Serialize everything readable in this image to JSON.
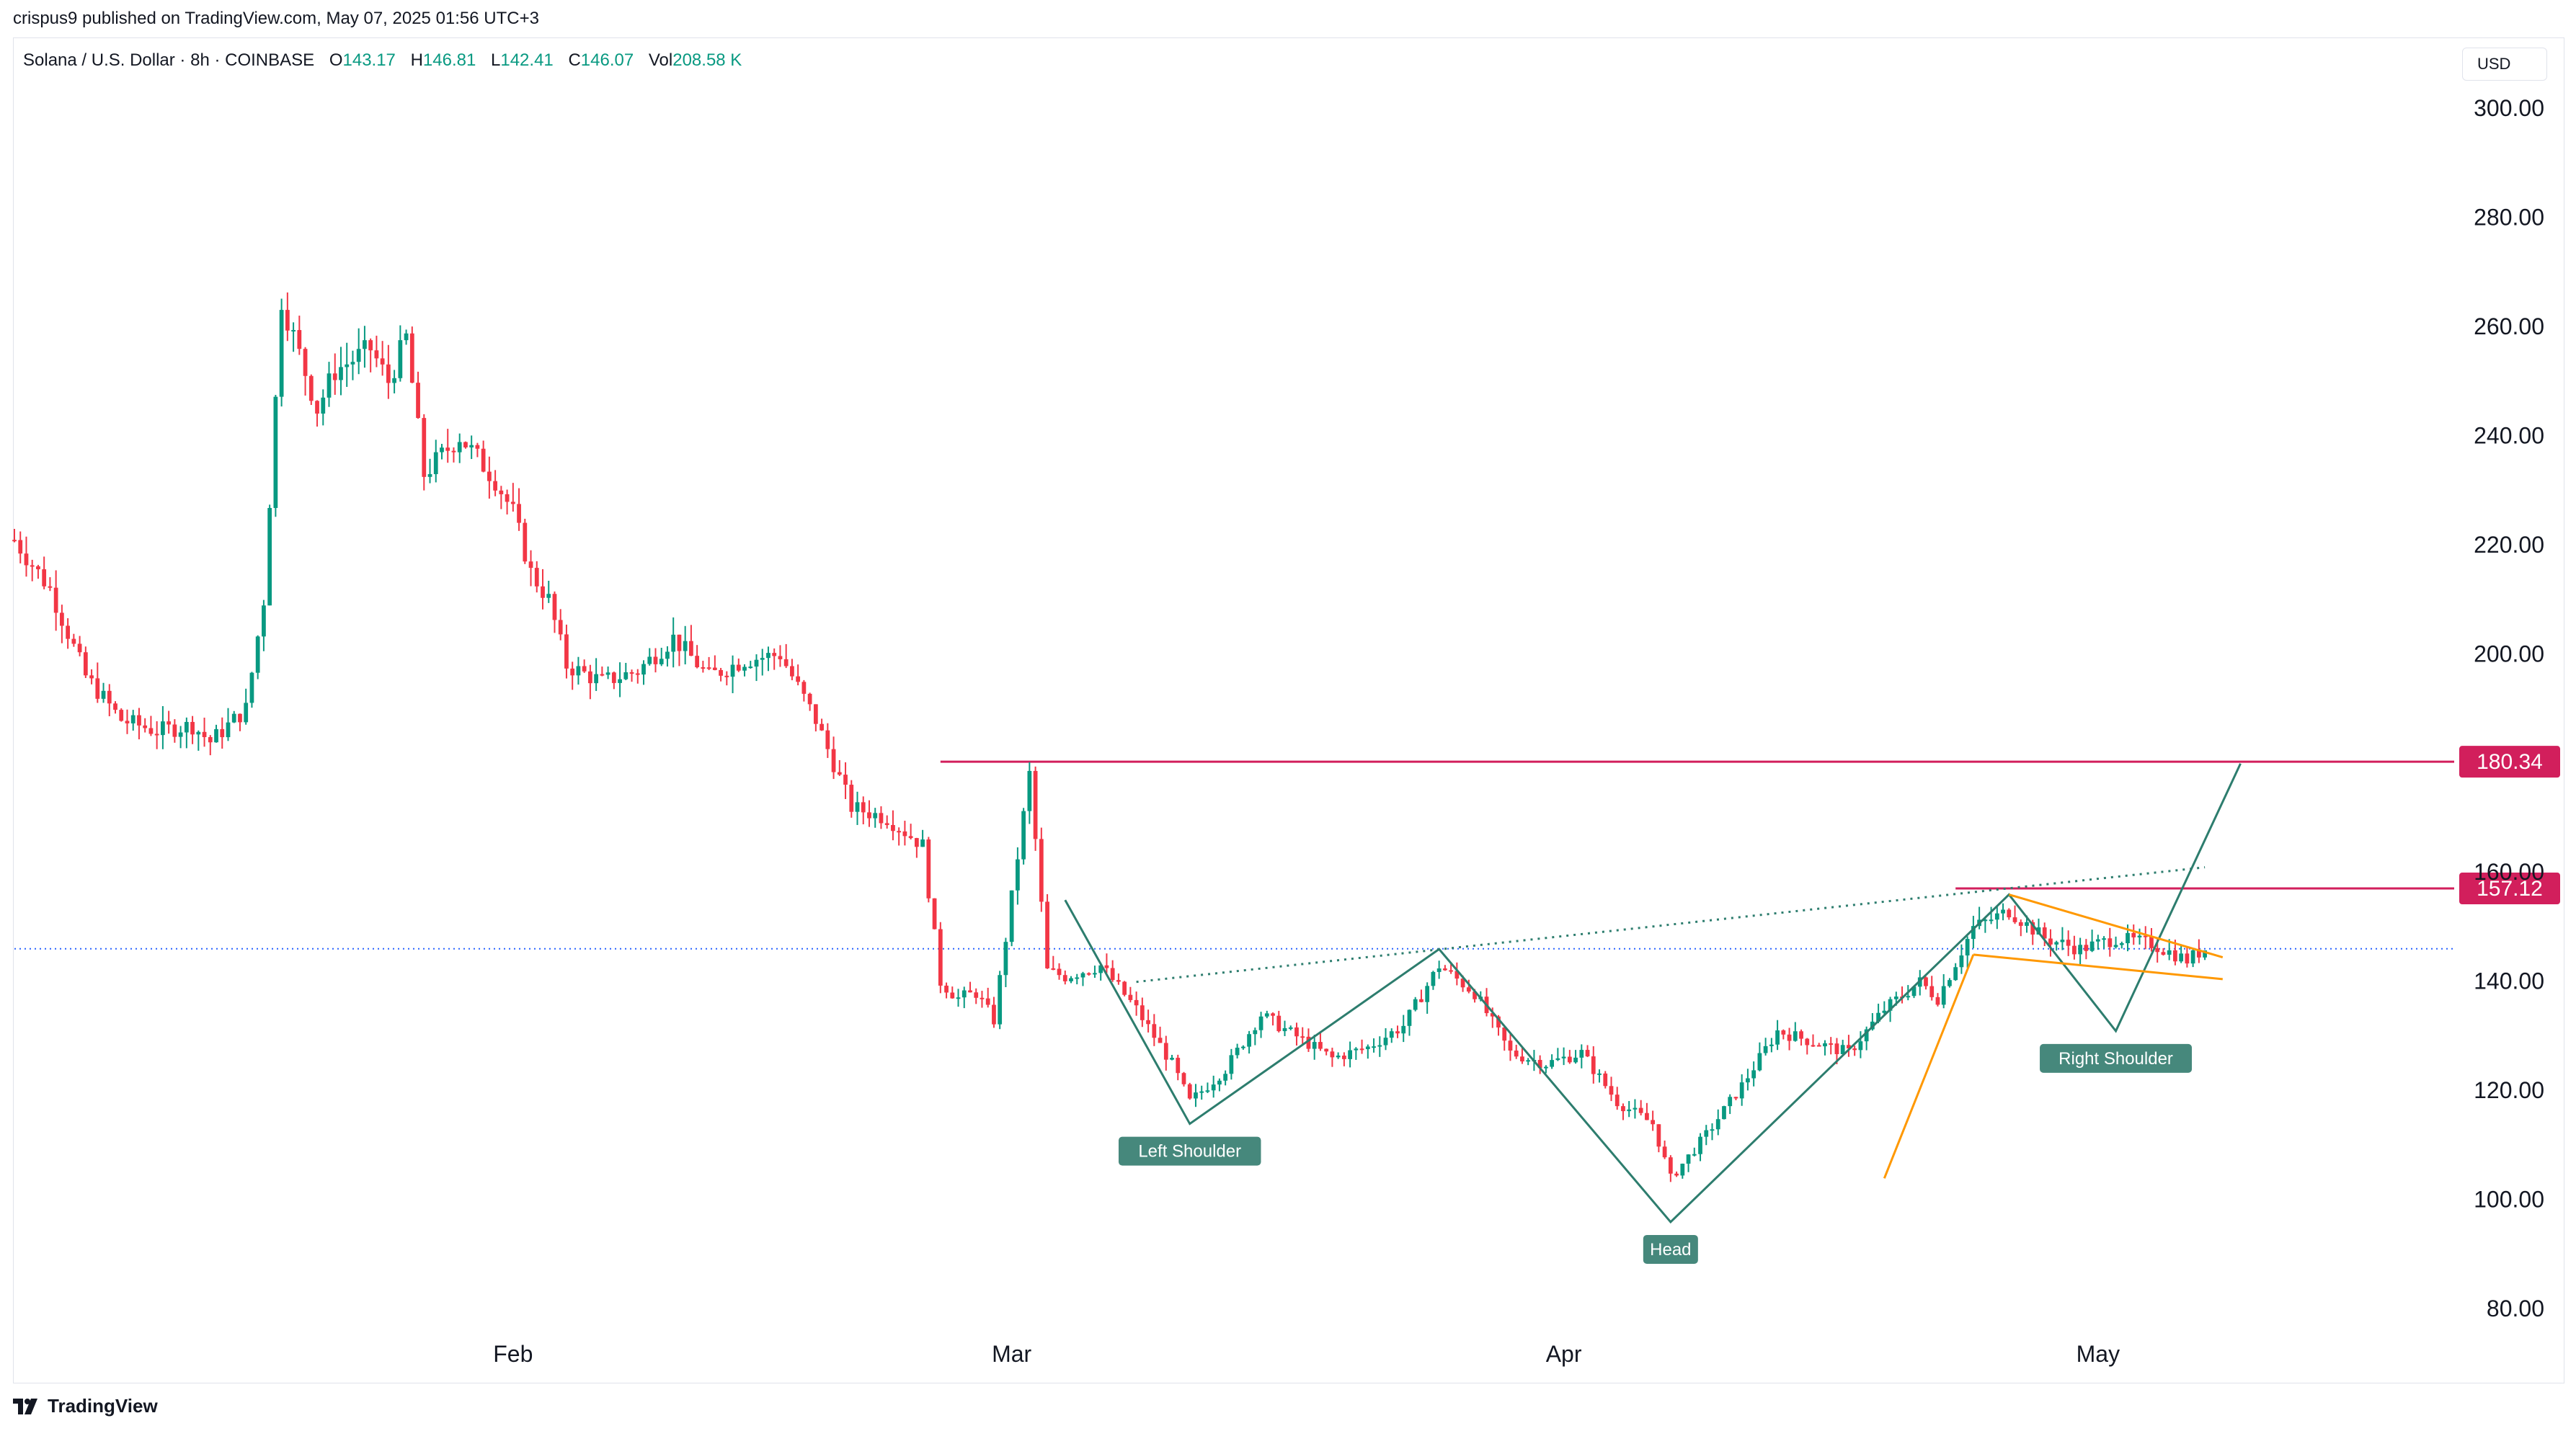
{
  "header": {
    "publisher_text": "crispus9 published on TradingView.com, May 07, 2025 01:56 UTC+3"
  },
  "legend": {
    "symbol": "Solana / U.S. Dollar · 8h · COINBASE",
    "open_label": "O",
    "open": "143.17",
    "high_label": "H",
    "high": "146.81",
    "low_label": "L",
    "low": "142.41",
    "close_label": "C",
    "close": "146.07",
    "vol_label": "Vol",
    "vol": "208.58 K"
  },
  "currency_button": "USD",
  "footer": {
    "brand": "TradingView",
    "logo_icon": "tradingview-logo-icon"
  },
  "colors": {
    "up": "#089981",
    "down": "#f23645",
    "level": "#d21f5c",
    "pattern": "#2d7d6e",
    "wedge": "#ff9800",
    "price_line": "#2962ff"
  },
  "chart_data": {
    "type": "candlestick",
    "title": "",
    "ylim": [
      75,
      312
    ],
    "y_ticks": [
      "300.00",
      "280.00",
      "260.00",
      "240.00",
      "220.00",
      "200.00",
      "160.00",
      "140.00",
      "120.00",
      "100.00",
      "80.00"
    ],
    "x_ticks": [
      {
        "label": "Feb",
        "date": "2025-02-01"
      },
      {
        "label": "Mar",
        "date": "2025-03-01"
      },
      {
        "label": "Apr",
        "date": "2025-04-01"
      },
      {
        "label": "May",
        "date": "2025-05-01"
      }
    ],
    "x_range": [
      "2025-01-04",
      "2025-05-21"
    ],
    "current_price": 146.07,
    "levels": [
      {
        "label": "180.34",
        "value": 180.34,
        "from": "2025-02-25"
      },
      {
        "label": "157.12",
        "value": 157.12,
        "from": "2025-04-23"
      }
    ],
    "annotations": [
      {
        "text": "Left Shoulder",
        "date": "2025-03-11",
        "value": 114
      },
      {
        "text": "Head",
        "date": "2025-04-07",
        "value": 96
      },
      {
        "text": "Right Shoulder",
        "date": "2025-05-02",
        "value": 131
      }
    ],
    "pattern_path": [
      [
        "2025-03-04",
        155
      ],
      [
        "2025-03-11",
        114
      ],
      [
        "2025-03-25",
        146
      ],
      [
        "2025-04-07",
        96
      ],
      [
        "2025-04-26",
        156
      ],
      [
        "2025-05-02",
        131
      ],
      [
        "2025-05-09",
        180
      ]
    ],
    "neckline": [
      [
        "2025-03-08",
        140
      ],
      [
        "2025-05-07",
        161
      ]
    ],
    "wedge_lines": [
      [
        [
          "2025-04-19",
          104
        ],
        [
          "2025-04-24",
          145
        ]
      ],
      [
        [
          "2025-04-24",
          145
        ],
        [
          "2025-05-08",
          140.5
        ]
      ],
      [
        [
          "2025-04-26",
          156
        ],
        [
          "2025-05-08",
          144.5
        ]
      ]
    ],
    "series": [
      {
        "date": "2025-01-04",
        "close": 221
      },
      {
        "date": "2025-01-06",
        "close": 212
      },
      {
        "date": "2025-01-08",
        "close": 196
      },
      {
        "date": "2025-01-10",
        "close": 188
      },
      {
        "date": "2025-01-12",
        "close": 186
      },
      {
        "date": "2025-01-14",
        "close": 187
      },
      {
        "date": "2025-01-15",
        "close": 184
      },
      {
        "date": "2025-01-17",
        "close": 190
      },
      {
        "date": "2025-01-18",
        "close": 210
      },
      {
        "date": "2025-01-19",
        "close": 265
      },
      {
        "date": "2025-01-20",
        "close": 255
      },
      {
        "date": "2025-01-21",
        "close": 245
      },
      {
        "date": "2025-01-22",
        "close": 252
      },
      {
        "date": "2025-01-24",
        "close": 256
      },
      {
        "date": "2025-01-25",
        "close": 250
      },
      {
        "date": "2025-01-26",
        "close": 258
      },
      {
        "date": "2025-01-27",
        "close": 233
      },
      {
        "date": "2025-01-29",
        "close": 240
      },
      {
        "date": "2025-01-31",
        "close": 232
      },
      {
        "date": "2025-02-01",
        "close": 226
      },
      {
        "date": "2025-02-02",
        "close": 215
      },
      {
        "date": "2025-02-03",
        "close": 210
      },
      {
        "date": "2025-02-04",
        "close": 198
      },
      {
        "date": "2025-02-06",
        "close": 195
      },
      {
        "date": "2025-02-08",
        "close": 197
      },
      {
        "date": "2025-02-10",
        "close": 203
      },
      {
        "date": "2025-02-12",
        "close": 196
      },
      {
        "date": "2025-02-14",
        "close": 199
      },
      {
        "date": "2025-02-16",
        "close": 200
      },
      {
        "date": "2025-02-18",
        "close": 188
      },
      {
        "date": "2025-02-20",
        "close": 172
      },
      {
        "date": "2025-02-22",
        "close": 170
      },
      {
        "date": "2025-02-24",
        "close": 165
      },
      {
        "date": "2025-02-25",
        "close": 140
      },
      {
        "date": "2025-02-26",
        "close": 137
      },
      {
        "date": "2025-02-27",
        "close": 138
      },
      {
        "date": "2025-02-28",
        "close": 133
      },
      {
        "date": "2025-03-02",
        "close": 178
      },
      {
        "date": "2025-03-03",
        "close": 142
      },
      {
        "date": "2025-03-04",
        "close": 141
      },
      {
        "date": "2025-03-06",
        "close": 143
      },
      {
        "date": "2025-03-08",
        "close": 135
      },
      {
        "date": "2025-03-10",
        "close": 125
      },
      {
        "date": "2025-03-11",
        "close": 118
      },
      {
        "date": "2025-03-13",
        "close": 124
      },
      {
        "date": "2025-03-15",
        "close": 134
      },
      {
        "date": "2025-03-17",
        "close": 130
      },
      {
        "date": "2025-03-19",
        "close": 126
      },
      {
        "date": "2025-03-21",
        "close": 128
      },
      {
        "date": "2025-03-23",
        "close": 132
      },
      {
        "date": "2025-03-25",
        "close": 143
      },
      {
        "date": "2025-03-27",
        "close": 138
      },
      {
        "date": "2025-03-29",
        "close": 127
      },
      {
        "date": "2025-03-31",
        "close": 125
      },
      {
        "date": "2025-04-02",
        "close": 127
      },
      {
        "date": "2025-04-04",
        "close": 118
      },
      {
        "date": "2025-04-06",
        "close": 114
      },
      {
        "date": "2025-04-07",
        "close": 104
      },
      {
        "date": "2025-04-09",
        "close": 112
      },
      {
        "date": "2025-04-11",
        "close": 121
      },
      {
        "date": "2025-04-13",
        "close": 131
      },
      {
        "date": "2025-04-15",
        "close": 129
      },
      {
        "date": "2025-04-17",
        "close": 127
      },
      {
        "date": "2025-04-19",
        "close": 135
      },
      {
        "date": "2025-04-21",
        "close": 140
      },
      {
        "date": "2025-04-22",
        "close": 137
      },
      {
        "date": "2025-04-24",
        "close": 150
      },
      {
        "date": "2025-04-26",
        "close": 153
      },
      {
        "date": "2025-04-28",
        "close": 148
      },
      {
        "date": "2025-04-30",
        "close": 146
      },
      {
        "date": "2025-05-02",
        "close": 148
      },
      {
        "date": "2025-05-04",
        "close": 147
      },
      {
        "date": "2025-05-06",
        "close": 144
      },
      {
        "date": "2025-05-07",
        "close": 146.07
      }
    ]
  }
}
